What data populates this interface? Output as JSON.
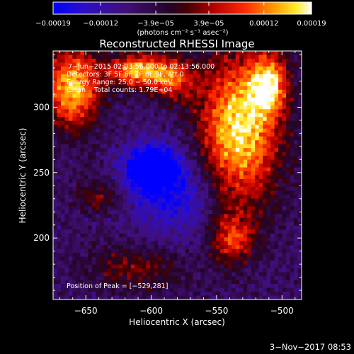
{
  "chart_data": {
    "type": "heatmap",
    "title": "Reconstructed RHESSI Image",
    "xlabel": "Heliocentric X (arcsec)",
    "ylabel": "Heliocentric Y (arcsec)",
    "xlim": [
      -675,
      -485
    ],
    "ylim": [
      153,
      343
    ],
    "x_ticks": [
      -650,
      -600,
      -550,
      -500
    ],
    "y_ticks": [
      200,
      250,
      300
    ],
    "x_tick_labels": [
      "−650",
      "−600",
      "−550",
      "−500"
    ],
    "y_tick_labels": [
      "200",
      "250",
      "300"
    ],
    "colorbar": {
      "label": "(photons cm⁻² s⁻¹ asec⁻²)",
      "ticks": [
        -0.00019,
        -0.00012,
        -3.9e-05,
        3.9e-05,
        0.00012,
        0.00019
      ],
      "tick_labels": [
        "−0.00019",
        "−0.00012",
        "−3.9e−05",
        "3.9e−05",
        "0.00012",
        "0.00019"
      ],
      "range": [
        -0.00019,
        0.00019
      ]
    },
    "annotations": [
      "7−Jun−2015 02:03:56.000 to 02:13:56.000",
      "Detectors: 3F 5F 6F 7F 8F 9F, Att 0",
      "Energy Range: 25.0 − 50.0 keV",
      "Clean    Total counts: 1.79E+04"
    ],
    "peak_label": "Position of Peak = [−529,281]",
    "peak": [
      -529,
      281
    ],
    "image_features": [
      {
        "kind": "bright",
        "x": -660,
        "y": 315,
        "sx": 15,
        "sy": 22,
        "amp": 0.9
      },
      {
        "kind": "bright",
        "x": -612,
        "y": 328,
        "sx": 15,
        "sy": 9,
        "amp": 0.85
      },
      {
        "kind": "bright",
        "x": -585,
        "y": 322,
        "sx": 12,
        "sy": 11,
        "amp": 0.65
      },
      {
        "kind": "bright",
        "x": -533,
        "y": 283,
        "sx": 22,
        "sy": 40,
        "amp": 1.0
      },
      {
        "kind": "bright",
        "x": -510,
        "y": 318,
        "sx": 10,
        "sy": 16,
        "amp": 0.75
      },
      {
        "kind": "bright",
        "x": -538,
        "y": 200,
        "sx": 12,
        "sy": 14,
        "amp": 0.55
      },
      {
        "kind": "bright",
        "x": -640,
        "y": 232,
        "sx": 12,
        "sy": 9,
        "amp": 0.35
      },
      {
        "kind": "bright",
        "x": -610,
        "y": 178,
        "sx": 28,
        "sy": 12,
        "amp": 0.35
      },
      {
        "kind": "dark",
        "x": -600,
        "y": 253,
        "sx": 14,
        "sy": 12,
        "amp": 0.8
      },
      {
        "kind": "dark",
        "x": -580,
        "y": 233,
        "sx": 24,
        "sy": 26,
        "amp": 0.4
      }
    ],
    "grid": false,
    "colormap": "blue-black-red-yellow-white",
    "colors": {
      "background": "#000000",
      "text": "#ffffff"
    }
  },
  "footer": {
    "date": "3−Nov−2017 08:53"
  }
}
